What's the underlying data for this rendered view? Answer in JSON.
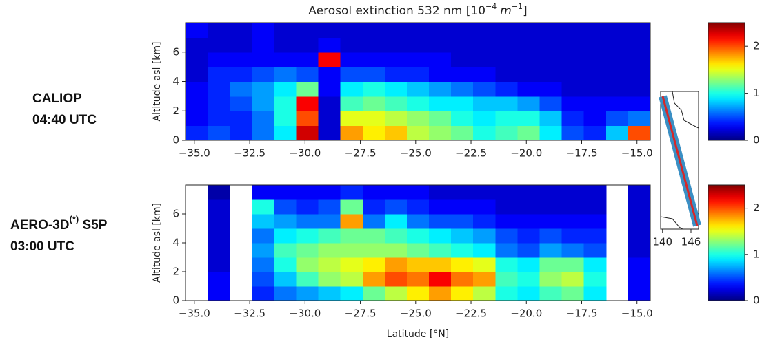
{
  "chart_data": [
    {
      "type": "heatmap",
      "title": [
        "Aerosol extinction 532 nm [10",
        "−4",
        "m",
        "−1",
        "]"
      ],
      "label": [
        "CALIOP",
        "04:40 UTC"
      ],
      "ylabel": "Altitude asl [km]",
      "xlim": [
        -35.4,
        -14.4
      ],
      "xticks": [
        {
          "value": -35,
          "label": "−35.0"
        },
        {
          "value": -32.5,
          "label": "−32.5"
        },
        {
          "value": -30,
          "label": "−30.0"
        },
        {
          "value": -27.5,
          "label": "−27.5"
        },
        {
          "value": -25,
          "label": "−25.0"
        },
        {
          "value": -22.5,
          "label": "−22.5"
        },
        {
          "value": -20,
          "label": "−20.0"
        },
        {
          "value": -17.5,
          "label": "−17.5"
        },
        {
          "value": -15,
          "label": "−15.0"
        }
      ],
      "ylim": [
        0,
        8
      ],
      "yticks": [
        0,
        2,
        4,
        6
      ],
      "xbins": [
        -35.4,
        -34.4,
        -33.4,
        -32.4,
        -31.4,
        -30.4,
        -29.4,
        -28.4,
        -27.4,
        -26.4,
        -25.4,
        -24.4,
        -23.4,
        -22.4,
        -21.4,
        -20.4,
        -19.4,
        -18.4,
        -17.4,
        -16.4,
        -15.4,
        -14.4
      ],
      "ybins": [
        0,
        1,
        2,
        3,
        4,
        5,
        6,
        7,
        8
      ],
      "values": [
        [
          0.4,
          0.5,
          0.4,
          0.6,
          0.9,
          2.3,
          0.2,
          1.8,
          1.6,
          1.7,
          1.4,
          1.3,
          1.2,
          1.0,
          1.1,
          1.2,
          0.9,
          0.5,
          0.4,
          0.8,
          2.0
        ],
        [
          0.3,
          0.4,
          0.4,
          0.6,
          1.0,
          2.0,
          0.2,
          1.5,
          1.5,
          1.4,
          1.3,
          1.2,
          1.0,
          0.9,
          1.0,
          1.0,
          0.8,
          0.4,
          0.3,
          0.5,
          0.6
        ],
        [
          0.3,
          0.4,
          0.5,
          0.7,
          1.0,
          2.2,
          0.2,
          1.1,
          1.2,
          1.1,
          1.0,
          0.9,
          0.9,
          0.8,
          0.8,
          0.7,
          0.5,
          0.3,
          0.3,
          0.3,
          0.3
        ],
        [
          0.3,
          0.4,
          0.6,
          0.7,
          0.9,
          1.2,
          0.3,
          0.9,
          1.0,
          0.9,
          0.8,
          0.7,
          0.6,
          0.5,
          0.4,
          0.3,
          0.3,
          0.2,
          0.2,
          0.2,
          0.2
        ],
        [
          0.2,
          0.4,
          0.4,
          0.5,
          0.6,
          0.5,
          0.3,
          0.5,
          0.5,
          0.4,
          0.4,
          0.3,
          0.3,
          0.3,
          0.2,
          0.2,
          0.2,
          0.2,
          0.2,
          0.2,
          0.2
        ],
        [
          0.2,
          0.3,
          0.3,
          0.3,
          0.3,
          0.3,
          2.2,
          0.3,
          0.3,
          0.3,
          0.3,
          0.3,
          0.2,
          0.2,
          0.2,
          0.2,
          0.2,
          0.2,
          0.2,
          0.2,
          0.2
        ],
        [
          0.2,
          0.2,
          0.2,
          0.3,
          0.2,
          0.2,
          0.3,
          0.2,
          0.2,
          0.2,
          0.2,
          0.2,
          0.2,
          0.2,
          0.2,
          0.2,
          0.2,
          0.2,
          0.2,
          0.2,
          0.2
        ],
        [
          0.3,
          0.2,
          0.2,
          0.3,
          0.2,
          0.2,
          0.2,
          0.2,
          0.2,
          0.2,
          0.2,
          0.2,
          0.2,
          0.2,
          0.2,
          0.2,
          0.2,
          0.2,
          0.2,
          0.2,
          0.2
        ]
      ],
      "colorbar": {
        "lim": [
          0,
          2.5
        ],
        "ticks": [
          0,
          1,
          2
        ]
      }
    },
    {
      "type": "heatmap",
      "label": [
        "AERO-3D",
        "(*)",
        " S5P",
        "03:00 UTC"
      ],
      "ylabel": "Altitude asl [km]",
      "xlabel": "Latitude [°N]",
      "xlim": [
        -35.4,
        -14.4
      ],
      "xticks": [
        {
          "value": -35,
          "label": "−35.0"
        },
        {
          "value": -32.5,
          "label": "−32.5"
        },
        {
          "value": -30,
          "label": "−30.0"
        },
        {
          "value": -27.5,
          "label": "−27.5"
        },
        {
          "value": -25,
          "label": "−25.0"
        },
        {
          "value": -22.5,
          "label": "−22.5"
        },
        {
          "value": -20,
          "label": "−20.0"
        },
        {
          "value": -17.5,
          "label": "−17.5"
        },
        {
          "value": -15,
          "label": "−15.0"
        }
      ],
      "ylim": [
        0,
        8
      ],
      "yticks": [
        0,
        2,
        4,
        6
      ],
      "xbins": [
        -35.4,
        -34.4,
        -33.4,
        -32.4,
        -31.4,
        -30.4,
        -29.4,
        -28.4,
        -27.4,
        -26.4,
        -25.4,
        -24.4,
        -23.4,
        -22.4,
        -21.4,
        -20.4,
        -19.4,
        -18.4,
        -17.4,
        -16.4,
        -15.4,
        -14.4
      ],
      "ybins": [
        0,
        1,
        2,
        3,
        4,
        5,
        6,
        7,
        8
      ],
      "values": [
        [
          null,
          0.3,
          null,
          0.4,
          0.6,
          0.7,
          0.8,
          0.9,
          1.2,
          1.4,
          1.6,
          1.8,
          1.6,
          1.4,
          1.0,
          0.9,
          1.1,
          1.2,
          0.9,
          null,
          0.3
        ],
        [
          null,
          0.3,
          null,
          0.5,
          0.8,
          1.1,
          1.3,
          1.4,
          1.8,
          2.0,
          1.9,
          2.2,
          1.9,
          1.8,
          1.1,
          1.0,
          1.3,
          1.4,
          1.0,
          null,
          0.3
        ],
        [
          null,
          0.2,
          null,
          0.6,
          1.0,
          1.3,
          1.4,
          1.5,
          1.6,
          1.8,
          1.7,
          1.7,
          1.6,
          1.5,
          1.0,
          0.9,
          1.2,
          1.2,
          0.9,
          null,
          0.3
        ],
        [
          null,
          0.2,
          null,
          0.7,
          1.1,
          1.2,
          1.3,
          1.3,
          1.3,
          1.3,
          1.2,
          1.1,
          1.0,
          0.9,
          0.6,
          0.5,
          0.7,
          0.6,
          0.5,
          null,
          0.2
        ],
        [
          null,
          0.2,
          null,
          0.6,
          0.9,
          1.0,
          1.1,
          1.2,
          1.2,
          1.1,
          1.0,
          0.9,
          0.8,
          0.7,
          0.5,
          0.4,
          0.5,
          0.4,
          0.4,
          null,
          0.2
        ],
        [
          null,
          0.2,
          null,
          0.8,
          0.7,
          0.6,
          0.6,
          1.8,
          0.6,
          0.9,
          0.6,
          0.5,
          0.5,
          0.4,
          0.3,
          0.3,
          0.3,
          0.3,
          0.3,
          null,
          0.2
        ],
        [
          null,
          0.2,
          null,
          1.0,
          0.5,
          0.4,
          0.5,
          1.2,
          0.4,
          0.5,
          0.4,
          0.3,
          0.3,
          0.3,
          0.2,
          0.2,
          0.2,
          0.2,
          0.2,
          null,
          0.2
        ],
        [
          null,
          0.1,
          null,
          0.3,
          0.3,
          0.3,
          0.3,
          0.4,
          0.3,
          0.3,
          0.3,
          0.2,
          0.2,
          0.2,
          0.2,
          0.2,
          0.2,
          0.2,
          0.2,
          null,
          0.2
        ]
      ],
      "colorbar": {
        "lim": [
          0,
          2.5
        ],
        "ticks": [
          0,
          1,
          2
        ]
      }
    },
    {
      "type": "map",
      "xlim": [
        139.6,
        147.6
      ],
      "xticks": [
        140,
        146
      ]
    }
  ]
}
